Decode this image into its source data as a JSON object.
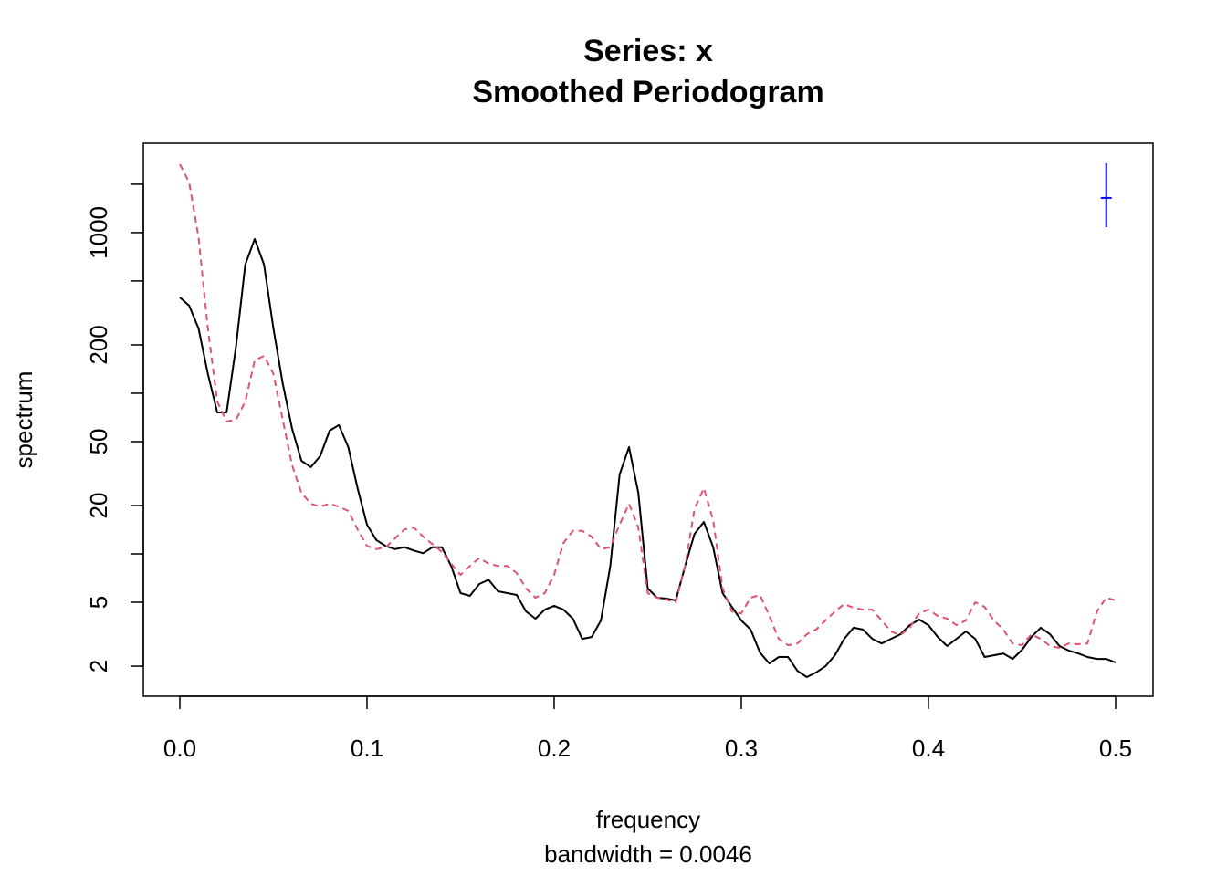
{
  "chart_data": {
    "type": "line",
    "title": "Series: x",
    "subtitle": "Smoothed Periodogram",
    "xlabel": "frequency",
    "sub": "bandwidth = 0.0046",
    "ylabel": "spectrum",
    "log_y": true,
    "xlim": [
      -0.0195,
      0.52
    ],
    "ylim": [
      1.3,
      3600
    ],
    "xticks": [
      {
        "value": 0,
        "label": "0.0"
      },
      0.1,
      0.2,
      0.3,
      0.4,
      0.5
    ],
    "yticks": [
      2,
      5,
      20,
      50,
      200,
      1000
    ],
    "yticks_unlabeled": [
      10,
      100,
      500,
      2000
    ],
    "x": [
      0,
      0.005,
      0.01,
      0.015,
      0.02,
      0.025,
      0.03,
      0.035,
      0.04,
      0.045,
      0.05,
      0.055,
      0.06,
      0.065,
      0.07,
      0.075,
      0.08,
      0.085,
      0.09,
      0.095,
      0.1,
      0.105,
      0.11,
      0.115,
      0.12,
      0.125,
      0.13,
      0.135,
      0.14,
      0.145,
      0.15,
      0.155,
      0.16,
      0.165,
      0.17,
      0.175,
      0.18,
      0.185,
      0.19,
      0.195,
      0.2,
      0.205,
      0.21,
      0.215,
      0.22,
      0.225,
      0.23,
      0.235,
      0.24,
      0.245,
      0.25,
      0.255,
      0.26,
      0.265,
      0.27,
      0.275,
      0.28,
      0.285,
      0.29,
      0.295,
      0.3,
      0.305,
      0.31,
      0.315,
      0.32,
      0.325,
      0.33,
      0.335,
      0.34,
      0.345,
      0.35,
      0.355,
      0.36,
      0.365,
      0.37,
      0.375,
      0.38,
      0.385,
      0.39,
      0.395,
      0.4,
      0.405,
      0.41,
      0.415,
      0.42,
      0.425,
      0.43,
      0.435,
      0.44,
      0.445,
      0.45,
      0.455,
      0.46,
      0.465,
      0.47,
      0.475,
      0.48,
      0.485,
      0.49,
      0.495,
      0.5
    ],
    "series": [
      {
        "color": "#000000",
        "dash": false,
        "values": [
          395,
          351,
          253,
          132,
          76,
          76,
          195,
          633,
          912,
          633,
          253,
          115,
          60.0,
          38.0,
          34.7,
          40.6,
          58.5,
          63.3,
          46.2,
          25.6,
          15.2,
          12.2,
          11.2,
          10.7,
          11.0,
          10.5,
          10.1,
          11.0,
          11.0,
          8.4,
          5.7,
          5.48,
          6.5,
          6.9,
          5.85,
          5.7,
          5.55,
          4.38,
          3.95,
          4.5,
          4.75,
          4.5,
          3.95,
          2.96,
          3.04,
          3.85,
          8.4,
          31.2,
          46.2,
          24.0,
          6.1,
          5.34,
          5.27,
          5.13,
          8.4,
          13.3,
          15.8,
          11.0,
          5.7,
          4.68,
          3.85,
          3.38,
          2.43,
          2.08,
          2.28,
          2.28,
          1.87,
          1.71,
          1.83,
          2.0,
          2.34,
          2.96,
          3.47,
          3.38,
          2.96,
          2.77,
          2.96,
          3.16,
          3.6,
          3.9,
          3.6,
          3.04,
          2.67,
          2.96,
          3.29,
          2.96,
          2.28,
          2.34,
          2.4,
          2.22,
          2.53,
          3.04,
          3.47,
          3.16,
          2.67,
          2.5,
          2.4,
          2.28,
          2.22,
          2.22,
          2.11
        ]
      },
      {
        "color": "#DF536B",
        "dash": true,
        "values": [
          2667,
          2053,
          937,
          253,
          88.9,
          66.7,
          68.4,
          88.9,
          160,
          171,
          132,
          68.4,
          35.6,
          24.0,
          20.5,
          19.7,
          20.5,
          19.7,
          18.5,
          14.2,
          11.2,
          10.7,
          11.0,
          12.5,
          14.2,
          14.6,
          12.8,
          11.5,
          10.3,
          8.7,
          7.4,
          8.4,
          9.4,
          8.7,
          8.4,
          8.4,
          7.6,
          6.1,
          5.34,
          5.7,
          7.4,
          11.7,
          13.9,
          13.9,
          12.8,
          10.7,
          11.0,
          15.2,
          20.5,
          14.6,
          5.7,
          5.34,
          5.2,
          5.0,
          8.4,
          19.0,
          25.6,
          16.2,
          6.1,
          4.38,
          4.27,
          5.34,
          5.55,
          4.11,
          2.96,
          2.7,
          2.77,
          3.16,
          3.38,
          3.85,
          4.38,
          4.87,
          4.62,
          4.5,
          4.5,
          3.85,
          3.29,
          3.12,
          3.47,
          4.27,
          4.5,
          4.11,
          3.95,
          3.6,
          3.85,
          5.0,
          4.68,
          3.85,
          3.38,
          2.77,
          2.7,
          3.16,
          2.96,
          2.67,
          2.6,
          2.77,
          2.74,
          2.77,
          4.38,
          5.34,
          5.13
        ]
      }
    ],
    "ci_bar": {
      "x": 0.495,
      "center": 1644,
      "lower": 1081,
      "upper": 2705,
      "color": "#0000FF"
    }
  }
}
